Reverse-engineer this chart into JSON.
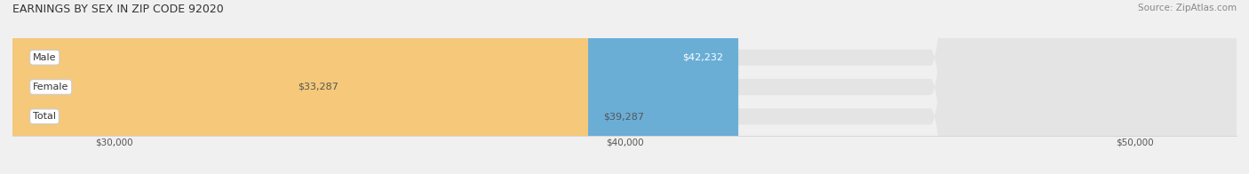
{
  "title": "EARNINGS BY SEX IN ZIP CODE 92020",
  "source": "Source: ZipAtlas.com",
  "categories": [
    "Male",
    "Female",
    "Total"
  ],
  "values": [
    42232,
    33287,
    39287
  ],
  "bar_colors": [
    "#6aaed6",
    "#f4a8bf",
    "#f5c87a"
  ],
  "bar_labels": [
    "$42,232",
    "$33,287",
    "$39,287"
  ],
  "x_min": 28000,
  "x_max": 52000,
  "x_ticks": [
    30000,
    40000,
    50000
  ],
  "x_tick_labels": [
    "$30,000",
    "$40,000",
    "$50,000"
  ],
  "bg_color": "#f0f0f0",
  "bar_bg_color": "#e4e4e4",
  "title_fontsize": 9,
  "source_fontsize": 7.5,
  "label_fontsize": 8,
  "tick_fontsize": 7.5,
  "cat_fontsize": 8,
  "bar_height": 0.55,
  "fig_width": 14.06,
  "fig_height": 1.96
}
